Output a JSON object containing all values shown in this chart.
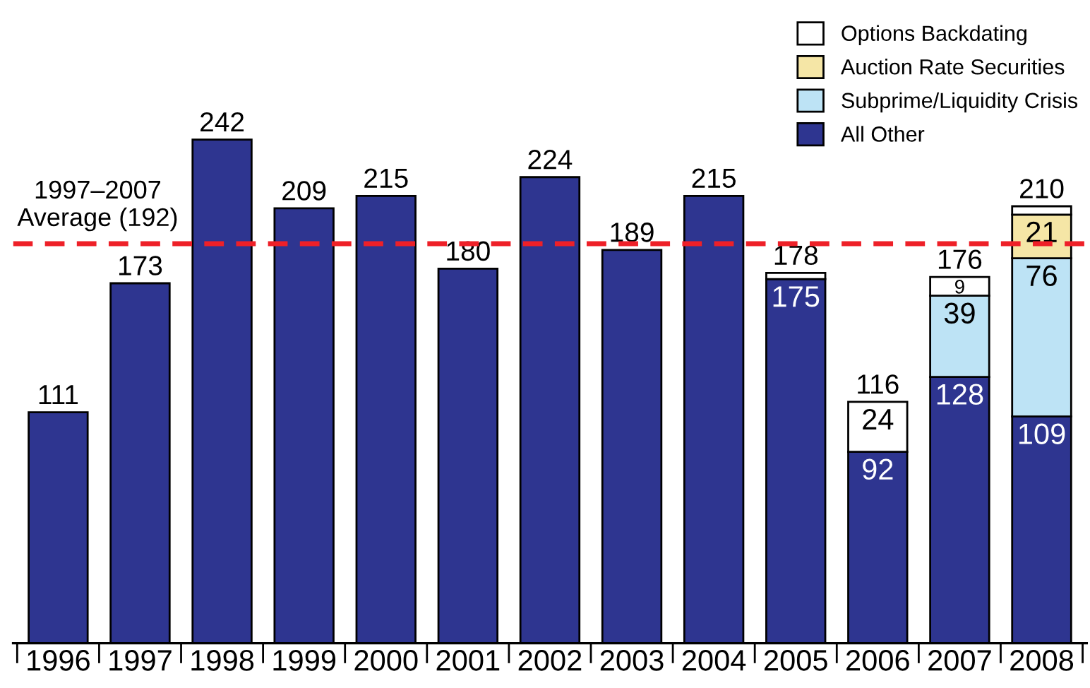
{
  "chart_data": {
    "type": "bar",
    "stacked": true,
    "categories": [
      "1996",
      "1997",
      "1998",
      "1999",
      "2000",
      "2001",
      "2002",
      "2003",
      "2004",
      "2005",
      "2006",
      "2007",
      "2008"
    ],
    "series": [
      {
        "name": "All Other",
        "color": "#2e3590",
        "values": [
          111,
          173,
          242,
          209,
          215,
          180,
          224,
          189,
          215,
          175,
          92,
          128,
          109
        ],
        "value_labels": [
          null,
          null,
          null,
          null,
          null,
          null,
          null,
          null,
          null,
          "175",
          "92",
          "128",
          "109"
        ]
      },
      {
        "name": "Subprime/Liquidity Crisis",
        "color": "#bde3f5",
        "values": [
          null,
          null,
          null,
          null,
          null,
          null,
          null,
          null,
          null,
          null,
          null,
          39,
          76
        ],
        "value_labels": [
          null,
          null,
          null,
          null,
          null,
          null,
          null,
          null,
          null,
          null,
          null,
          "39",
          "76"
        ]
      },
      {
        "name": "Auction Rate Securities",
        "color": "#f5e6a6",
        "values": [
          null,
          null,
          null,
          null,
          null,
          null,
          null,
          null,
          null,
          null,
          null,
          null,
          21
        ],
        "value_labels": [
          null,
          null,
          null,
          null,
          null,
          null,
          null,
          null,
          null,
          null,
          null,
          null,
          "21"
        ]
      },
      {
        "name": "Options Backdating",
        "color": "#ffffff",
        "values": [
          null,
          null,
          null,
          null,
          null,
          null,
          null,
          null,
          null,
          3,
          24,
          9,
          4
        ],
        "value_labels": [
          null,
          null,
          null,
          null,
          null,
          null,
          null,
          null,
          null,
          null,
          "24",
          "9",
          null
        ]
      }
    ],
    "totals": [
      "111",
      "173",
      "242",
      "209",
      "215",
      "180",
      "224",
      "189",
      "215",
      "178",
      "116",
      "176",
      "210"
    ],
    "tick_labels": "x",
    "grid": false,
    "legend": "top right",
    "ref_lines": [
      {
        "axis": "y",
        "value": 192,
        "label": "1997–2007\nAverage (192)",
        "color": "#ee2028",
        "line_style": "dashed"
      }
    ]
  }
}
